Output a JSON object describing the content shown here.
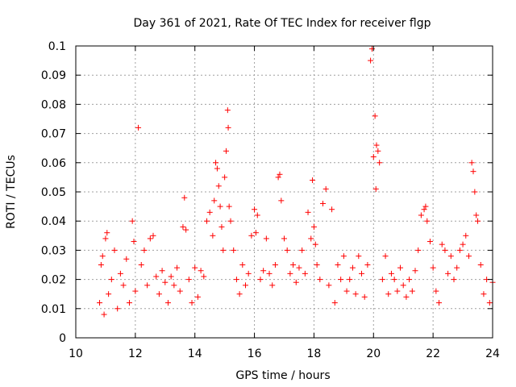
{
  "chart_data": {
    "type": "scatter",
    "title": "Day 361 of 2021, Rate Of TEC Index for receiver flgp",
    "xlabel": "GPS time / hours",
    "ylabel": "ROTI / TECUs",
    "xlim": [
      10,
      24
    ],
    "ylim": [
      0,
      0.1
    ],
    "x_ticks": [
      10,
      12,
      14,
      16,
      18,
      20,
      22,
      24
    ],
    "x_tick_labels": [
      "10",
      "12",
      "14",
      "16",
      "18",
      "20",
      "22",
      "24"
    ],
    "y_ticks": [
      0,
      0.01,
      0.02,
      0.03,
      0.04,
      0.05,
      0.06,
      0.07,
      0.08,
      0.09,
      0.1
    ],
    "y_tick_labels": [
      "0",
      "0.01",
      "0.02",
      "0.03",
      "0.04",
      "0.05",
      "0.06",
      "0.07",
      "0.08",
      "0.09",
      "0.1"
    ],
    "grid": true,
    "marker": "+",
    "marker_color": "#ff0000",
    "series": [
      {
        "name": "ROTI",
        "points": [
          [
            10.8,
            0.012
          ],
          [
            10.85,
            0.025
          ],
          [
            10.9,
            0.028
          ],
          [
            10.95,
            0.008
          ],
          [
            11.0,
            0.034
          ],
          [
            11.05,
            0.036
          ],
          [
            11.1,
            0.015
          ],
          [
            11.2,
            0.02
          ],
          [
            11.3,
            0.03
          ],
          [
            11.4,
            0.01
          ],
          [
            11.5,
            0.022
          ],
          [
            11.6,
            0.018
          ],
          [
            11.7,
            0.027
          ],
          [
            11.8,
            0.012
          ],
          [
            11.9,
            0.04
          ],
          [
            11.95,
            0.033
          ],
          [
            12.0,
            0.016
          ],
          [
            12.1,
            0.072
          ],
          [
            12.2,
            0.025
          ],
          [
            12.3,
            0.03
          ],
          [
            12.4,
            0.018
          ],
          [
            12.5,
            0.034
          ],
          [
            12.6,
            0.035
          ],
          [
            12.7,
            0.021
          ],
          [
            12.8,
            0.015
          ],
          [
            12.9,
            0.023
          ],
          [
            13.0,
            0.019
          ],
          [
            13.1,
            0.012
          ],
          [
            13.2,
            0.021
          ],
          [
            13.3,
            0.018
          ],
          [
            13.4,
            0.024
          ],
          [
            13.5,
            0.016
          ],
          [
            13.6,
            0.038
          ],
          [
            13.65,
            0.048
          ],
          [
            13.7,
            0.037
          ],
          [
            13.8,
            0.02
          ],
          [
            13.9,
            0.012
          ],
          [
            14.0,
            0.024
          ],
          [
            14.1,
            0.014
          ],
          [
            14.2,
            0.023
          ],
          [
            14.3,
            0.021
          ],
          [
            14.4,
            0.04
          ],
          [
            14.5,
            0.043
          ],
          [
            14.6,
            0.035
          ],
          [
            14.65,
            0.047
          ],
          [
            14.7,
            0.06
          ],
          [
            14.75,
            0.058
          ],
          [
            14.8,
            0.052
          ],
          [
            14.85,
            0.045
          ],
          [
            14.9,
            0.038
          ],
          [
            14.95,
            0.03
          ],
          [
            15.0,
            0.055
          ],
          [
            15.05,
            0.064
          ],
          [
            15.1,
            0.078
          ],
          [
            15.12,
            0.072
          ],
          [
            15.15,
            0.045
          ],
          [
            15.2,
            0.04
          ],
          [
            15.3,
            0.03
          ],
          [
            15.4,
            0.02
          ],
          [
            15.5,
            0.015
          ],
          [
            15.6,
            0.025
          ],
          [
            15.7,
            0.018
          ],
          [
            15.8,
            0.022
          ],
          [
            15.9,
            0.035
          ],
          [
            16.0,
            0.044
          ],
          [
            16.05,
            0.036
          ],
          [
            16.1,
            0.042
          ],
          [
            16.2,
            0.02
          ],
          [
            16.3,
            0.023
          ],
          [
            16.4,
            0.034
          ],
          [
            16.5,
            0.022
          ],
          [
            16.6,
            0.018
          ],
          [
            16.7,
            0.025
          ],
          [
            16.8,
            0.055
          ],
          [
            16.85,
            0.056
          ],
          [
            16.9,
            0.047
          ],
          [
            17.0,
            0.034
          ],
          [
            17.1,
            0.03
          ],
          [
            17.2,
            0.022
          ],
          [
            17.3,
            0.025
          ],
          [
            17.4,
            0.019
          ],
          [
            17.5,
            0.024
          ],
          [
            17.6,
            0.03
          ],
          [
            17.7,
            0.022
          ],
          [
            17.8,
            0.043
          ],
          [
            17.9,
            0.034
          ],
          [
            17.95,
            0.054
          ],
          [
            18.0,
            0.038
          ],
          [
            18.05,
            0.032
          ],
          [
            18.1,
            0.025
          ],
          [
            18.2,
            0.02
          ],
          [
            18.3,
            0.046
          ],
          [
            18.4,
            0.051
          ],
          [
            18.5,
            0.018
          ],
          [
            18.6,
            0.044
          ],
          [
            18.7,
            0.012
          ],
          [
            18.8,
            0.025
          ],
          [
            18.9,
            0.02
          ],
          [
            19.0,
            0.028
          ],
          [
            19.1,
            0.016
          ],
          [
            19.2,
            0.02
          ],
          [
            19.3,
            0.024
          ],
          [
            19.4,
            0.015
          ],
          [
            19.5,
            0.028
          ],
          [
            19.6,
            0.022
          ],
          [
            19.7,
            0.014
          ],
          [
            19.8,
            0.025
          ],
          [
            19.9,
            0.095
          ],
          [
            19.95,
            0.099
          ],
          [
            20.0,
            0.062
          ],
          [
            20.05,
            0.076
          ],
          [
            20.08,
            0.051
          ],
          [
            20.1,
            0.066
          ],
          [
            20.15,
            0.064
          ],
          [
            20.2,
            0.06
          ],
          [
            20.3,
            0.02
          ],
          [
            20.4,
            0.028
          ],
          [
            20.5,
            0.015
          ],
          [
            20.6,
            0.022
          ],
          [
            20.7,
            0.02
          ],
          [
            20.8,
            0.016
          ],
          [
            20.9,
            0.024
          ],
          [
            21.0,
            0.018
          ],
          [
            21.1,
            0.014
          ],
          [
            21.2,
            0.02
          ],
          [
            21.3,
            0.016
          ],
          [
            21.4,
            0.023
          ],
          [
            21.5,
            0.03
          ],
          [
            21.6,
            0.042
          ],
          [
            21.7,
            0.044
          ],
          [
            21.75,
            0.045
          ],
          [
            21.8,
            0.04
          ],
          [
            21.9,
            0.033
          ],
          [
            22.0,
            0.024
          ],
          [
            22.1,
            0.016
          ],
          [
            22.2,
            0.012
          ],
          [
            22.3,
            0.032
          ],
          [
            22.4,
            0.03
          ],
          [
            22.5,
            0.022
          ],
          [
            22.6,
            0.028
          ],
          [
            22.7,
            0.02
          ],
          [
            22.8,
            0.024
          ],
          [
            22.9,
            0.03
          ],
          [
            23.0,
            0.032
          ],
          [
            23.1,
            0.035
          ],
          [
            23.2,
            0.028
          ],
          [
            23.3,
            0.06
          ],
          [
            23.35,
            0.057
          ],
          [
            23.4,
            0.05
          ],
          [
            23.45,
            0.042
          ],
          [
            23.5,
            0.04
          ],
          [
            23.6,
            0.025
          ],
          [
            23.7,
            0.015
          ],
          [
            23.8,
            0.02
          ],
          [
            23.9,
            0.012
          ],
          [
            24.0,
            0.019
          ]
        ]
      }
    ]
  }
}
